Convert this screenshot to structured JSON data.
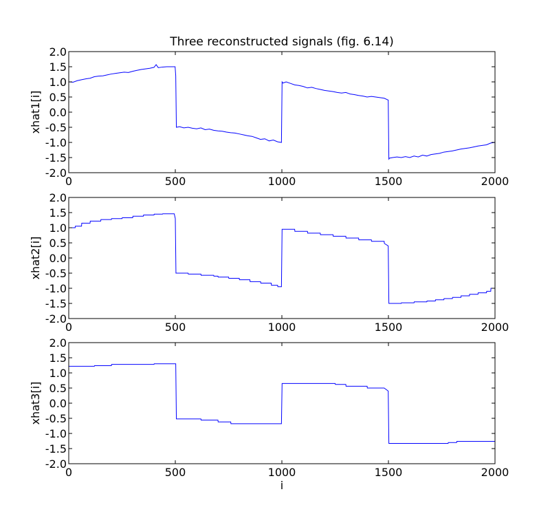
{
  "chart_data": [
    {
      "type": "line",
      "title": "Three reconstructed signals (fig. 6.14)",
      "xlabel": "",
      "ylabel": "xhat1[i]",
      "xlim": [
        0,
        2000
      ],
      "ylim": [
        -2.0,
        2.0
      ],
      "xticks": [
        "0",
        "500",
        "1000",
        "1500",
        "2000"
      ],
      "yticks": [
        "2.0",
        "1.5",
        "1.0",
        "0.5",
        "0.0",
        "-0.5",
        "-1.0",
        "-1.5",
        "-2.0"
      ],
      "grid": false,
      "color": "#0000ff",
      "series": [
        {
          "x": [
            0,
            20,
            40,
            60,
            80,
            100,
            120,
            140,
            160,
            180,
            200,
            220,
            240,
            260,
            280,
            300,
            320,
            340,
            360,
            380,
            400,
            410,
            420,
            440,
            460,
            480,
            499,
            502,
            505,
            520,
            540,
            560,
            580,
            600,
            620,
            640,
            660,
            680,
            700,
            720,
            740,
            760,
            780,
            800,
            820,
            840,
            860,
            880,
            900,
            920,
            940,
            960,
            980,
            998,
            1001,
            1005,
            1020,
            1040,
            1060,
            1080,
            1100,
            1120,
            1140,
            1160,
            1180,
            1200,
            1220,
            1240,
            1260,
            1280,
            1300,
            1320,
            1340,
            1360,
            1380,
            1400,
            1420,
            1440,
            1460,
            1480,
            1499,
            1502,
            1505,
            1520,
            1540,
            1560,
            1580,
            1600,
            1620,
            1640,
            1660,
            1680,
            1700,
            1720,
            1740,
            1760,
            1780,
            1800,
            1820,
            1840,
            1860,
            1880,
            1900,
            1920,
            1940,
            1960,
            1980,
            2000
          ],
          "y": [
            1.0,
            0.99,
            1.04,
            1.07,
            1.1,
            1.12,
            1.17,
            1.19,
            1.2,
            1.23,
            1.26,
            1.28,
            1.3,
            1.32,
            1.31,
            1.35,
            1.38,
            1.41,
            1.43,
            1.45,
            1.48,
            1.57,
            1.47,
            1.49,
            1.5,
            1.5,
            1.5,
            1.2,
            -0.5,
            -0.48,
            -0.52,
            -0.5,
            -0.53,
            -0.55,
            -0.52,
            -0.58,
            -0.56,
            -0.6,
            -0.62,
            -0.63,
            -0.66,
            -0.68,
            -0.69,
            -0.72,
            -0.75,
            -0.78,
            -0.8,
            -0.85,
            -0.9,
            -0.88,
            -0.95,
            -0.92,
            -0.98,
            -1.0,
            1.0,
            0.96,
            1.0,
            0.95,
            0.9,
            0.88,
            0.85,
            0.8,
            0.82,
            0.78,
            0.75,
            0.72,
            0.7,
            0.68,
            0.65,
            0.63,
            0.65,
            0.6,
            0.58,
            0.55,
            0.53,
            0.5,
            0.52,
            0.5,
            0.48,
            0.46,
            0.4,
            -1.55,
            -1.52,
            -1.5,
            -1.48,
            -1.5,
            -1.47,
            -1.5,
            -1.45,
            -1.48,
            -1.42,
            -1.45,
            -1.4,
            -1.38,
            -1.36,
            -1.32,
            -1.3,
            -1.28,
            -1.25,
            -1.22,
            -1.2,
            -1.18,
            -1.15,
            -1.12,
            -1.1,
            -1.08,
            -1.02,
            -1.0
          ]
        }
      ]
    },
    {
      "type": "line",
      "title": "",
      "xlabel": "",
      "ylabel": "xhat2[i]",
      "xlim": [
        0,
        2000
      ],
      "ylim": [
        -2.0,
        2.0
      ],
      "xticks": [
        "0",
        "500",
        "1000",
        "1500",
        "2000"
      ],
      "yticks": [
        "2.0",
        "1.5",
        "1.0",
        "0.5",
        "0.0",
        "-0.5",
        "-1.0",
        "-1.5",
        "-2.0"
      ],
      "grid": false,
      "color": "#0000ff",
      "series": [
        {
          "x": [
            0,
            30,
            31,
            60,
            61,
            100,
            101,
            150,
            151,
            200,
            201,
            250,
            251,
            300,
            301,
            350,
            351,
            400,
            401,
            440,
            441,
            495,
            500,
            503,
            505,
            560,
            561,
            620,
            621,
            680,
            681,
            700,
            701,
            750,
            751,
            800,
            801,
            850,
            851,
            900,
            901,
            950,
            951,
            980,
            981,
            998,
            1001,
            1005,
            1060,
            1061,
            1120,
            1121,
            1180,
            1181,
            1240,
            1241,
            1300,
            1301,
            1360,
            1361,
            1420,
            1421,
            1480,
            1481,
            1499,
            1502,
            1505,
            1560,
            1561,
            1620,
            1621,
            1680,
            1681,
            1720,
            1721,
            1760,
            1761,
            1800,
            1801,
            1840,
            1841,
            1880,
            1881,
            1920,
            1921,
            1960,
            1961,
            1980,
            1981,
            2000
          ],
          "y": [
            1.0,
            1.0,
            1.05,
            1.05,
            1.15,
            1.15,
            1.22,
            1.22,
            1.27,
            1.27,
            1.3,
            1.3,
            1.33,
            1.33,
            1.38,
            1.38,
            1.42,
            1.42,
            1.45,
            1.45,
            1.46,
            1.46,
            1.3,
            -0.5,
            -0.5,
            -0.5,
            -0.53,
            -0.53,
            -0.57,
            -0.57,
            -0.6,
            -0.6,
            -0.63,
            -0.63,
            -0.67,
            -0.67,
            -0.72,
            -0.72,
            -0.78,
            -0.78,
            -0.83,
            -0.83,
            -0.9,
            -0.9,
            -0.95,
            -0.95,
            0.95,
            0.95,
            0.95,
            0.88,
            0.88,
            0.82,
            0.82,
            0.77,
            0.77,
            0.72,
            0.72,
            0.66,
            0.66,
            0.6,
            0.6,
            0.55,
            0.55,
            0.48,
            0.4,
            -1.5,
            -1.5,
            -1.5,
            -1.48,
            -1.48,
            -1.45,
            -1.45,
            -1.42,
            -1.42,
            -1.38,
            -1.38,
            -1.34,
            -1.34,
            -1.3,
            -1.3,
            -1.25,
            -1.25,
            -1.2,
            -1.2,
            -1.15,
            -1.15,
            -1.1,
            -1.1,
            -1.0,
            -1.0
          ]
        }
      ]
    },
    {
      "type": "line",
      "title": "",
      "xlabel": "i",
      "ylabel": "xhat3[i]",
      "xlim": [
        0,
        2000
      ],
      "ylim": [
        -2.0,
        2.0
      ],
      "xticks": [
        "0",
        "500",
        "1000",
        "1500",
        "2000"
      ],
      "yticks": [
        "2.0",
        "1.5",
        "1.0",
        "0.5",
        "0.0",
        "-0.5",
        "-1.0",
        "-1.5",
        "-2.0"
      ],
      "grid": false,
      "color": "#0000ff",
      "series": [
        {
          "x": [
            0,
            120,
            121,
            200,
            201,
            400,
            401,
            500,
            502,
            505,
            620,
            621,
            700,
            701,
            760,
            761,
            998,
            1001,
            1005,
            1250,
            1251,
            1300,
            1301,
            1400,
            1401,
            1480,
            1499,
            1502,
            1505,
            1780,
            1781,
            1820,
            1821,
            2000
          ],
          "y": [
            1.22,
            1.22,
            1.24,
            1.24,
            1.28,
            1.28,
            1.3,
            1.3,
            1.3,
            -0.52,
            -0.52,
            -0.56,
            -0.56,
            -0.62,
            -0.62,
            -0.68,
            -0.68,
            0.65,
            0.65,
            0.65,
            0.62,
            0.62,
            0.56,
            0.56,
            0.5,
            0.5,
            0.4,
            -1.33,
            -1.33,
            -1.33,
            -1.3,
            -1.3,
            -1.26,
            -1.26
          ]
        }
      ]
    }
  ]
}
